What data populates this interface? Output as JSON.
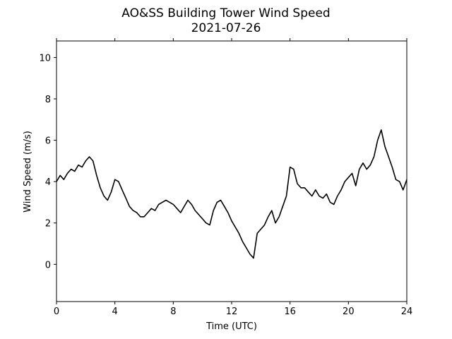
{
  "chart_data": {
    "type": "line",
    "title": "AO&SS Building Tower Wind Speed",
    "subtitle": "2021-07-26",
    "xlabel": "Time (UTC)",
    "ylabel": "Wind Speed (m/s)",
    "xlim": [
      0,
      24
    ],
    "ylim": [
      -1.8,
      10.8
    ],
    "xticks": [
      0,
      4,
      8,
      12,
      16,
      20,
      24
    ],
    "yticks": [
      0,
      2,
      4,
      6,
      8,
      10
    ],
    "grid": false,
    "line_color": "#000000",
    "series": [
      {
        "x": [
          0.0,
          0.25,
          0.5,
          0.75,
          1.0,
          1.25,
          1.5,
          1.75,
          2.0,
          2.25,
          2.5,
          2.75,
          3.0,
          3.25,
          3.5,
          3.75,
          4.0,
          4.25,
          4.5,
          4.75,
          5.0,
          5.25,
          5.5,
          5.75,
          6.0,
          6.25,
          6.5,
          6.75,
          7.0,
          7.25,
          7.5,
          7.75,
          8.0,
          8.25,
          8.5,
          8.75,
          9.0,
          9.25,
          9.5,
          9.75,
          10.0,
          10.25,
          10.5,
          10.75,
          11.0,
          11.25,
          11.5,
          11.75,
          12.0,
          12.25,
          12.5,
          12.75,
          13.0,
          13.25,
          13.5,
          13.75,
          14.0,
          14.25,
          14.5,
          14.75,
          15.0,
          15.25,
          15.5,
          15.75,
          16.0,
          16.25,
          16.5,
          16.75,
          17.0,
          17.25,
          17.5,
          17.75,
          18.0,
          18.25,
          18.5,
          18.75,
          19.0,
          19.25,
          19.5,
          19.75,
          20.0,
          20.25,
          20.5,
          20.75,
          21.0,
          21.25,
          21.5,
          21.75,
          22.0,
          22.25,
          22.5,
          22.75,
          23.0,
          23.25,
          23.5,
          23.75,
          24.0
        ],
        "values": [
          4.0,
          4.3,
          4.1,
          4.4,
          4.6,
          4.5,
          4.8,
          4.7,
          5.0,
          5.2,
          5.0,
          4.3,
          3.7,
          3.3,
          3.1,
          3.5,
          4.1,
          4.0,
          3.6,
          3.2,
          2.8,
          2.6,
          2.5,
          2.3,
          2.3,
          2.5,
          2.7,
          2.6,
          2.9,
          3.0,
          3.1,
          3.0,
          2.9,
          2.7,
          2.5,
          2.8,
          3.1,
          2.9,
          2.6,
          2.4,
          2.2,
          2.0,
          1.9,
          2.6,
          3.0,
          3.1,
          2.8,
          2.5,
          2.1,
          1.8,
          1.5,
          1.1,
          0.8,
          0.5,
          0.3,
          1.5,
          1.7,
          1.9,
          2.3,
          2.6,
          2.0,
          2.3,
          2.8,
          3.3,
          4.7,
          4.6,
          3.9,
          3.7,
          3.7,
          3.5,
          3.3,
          3.6,
          3.3,
          3.2,
          3.4,
          3.0,
          2.9,
          3.3,
          3.6,
          4.0,
          4.2,
          4.4,
          3.8,
          4.6,
          4.9,
          4.6,
          4.8,
          5.2,
          6.0,
          6.5,
          5.7,
          5.2,
          4.7,
          4.1,
          4.0,
          3.6,
          4.1
        ]
      }
    ]
  }
}
